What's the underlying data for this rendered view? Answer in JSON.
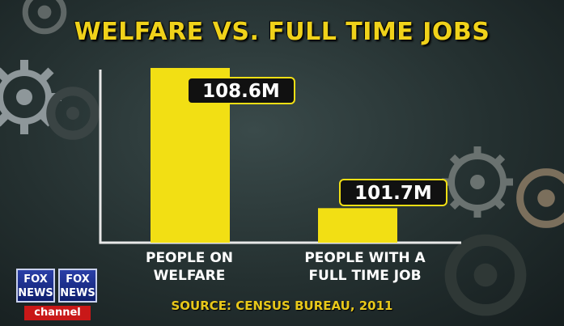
{
  "chart_data": {
    "type": "bar",
    "title": "WELFARE VS. FULL TIME JOBS",
    "categories": [
      "PEOPLE ON WELFARE",
      "PEOPLE WITH A FULL TIME JOB"
    ],
    "category_lines": [
      [
        "PEOPLE ON",
        "WELFARE"
      ],
      [
        "PEOPLE WITH A",
        "FULL TIME JOB"
      ]
    ],
    "values": [
      108.6,
      101.7
    ],
    "value_labels": [
      "108.6M",
      "101.7M"
    ],
    "axis_baseline": 100,
    "xlabel": "",
    "ylabel": "",
    "grid": false,
    "colors": {
      "bar": "#f2df14",
      "label_box": "#111111",
      "label_border": "#f2df14",
      "title": "#f0d21a"
    }
  },
  "source": "SOURCE: CENSUS BUREAU, 2011",
  "logo": {
    "left_text": "FOX NEWS",
    "right_text": "FOX NEWS",
    "channel": "channel"
  }
}
